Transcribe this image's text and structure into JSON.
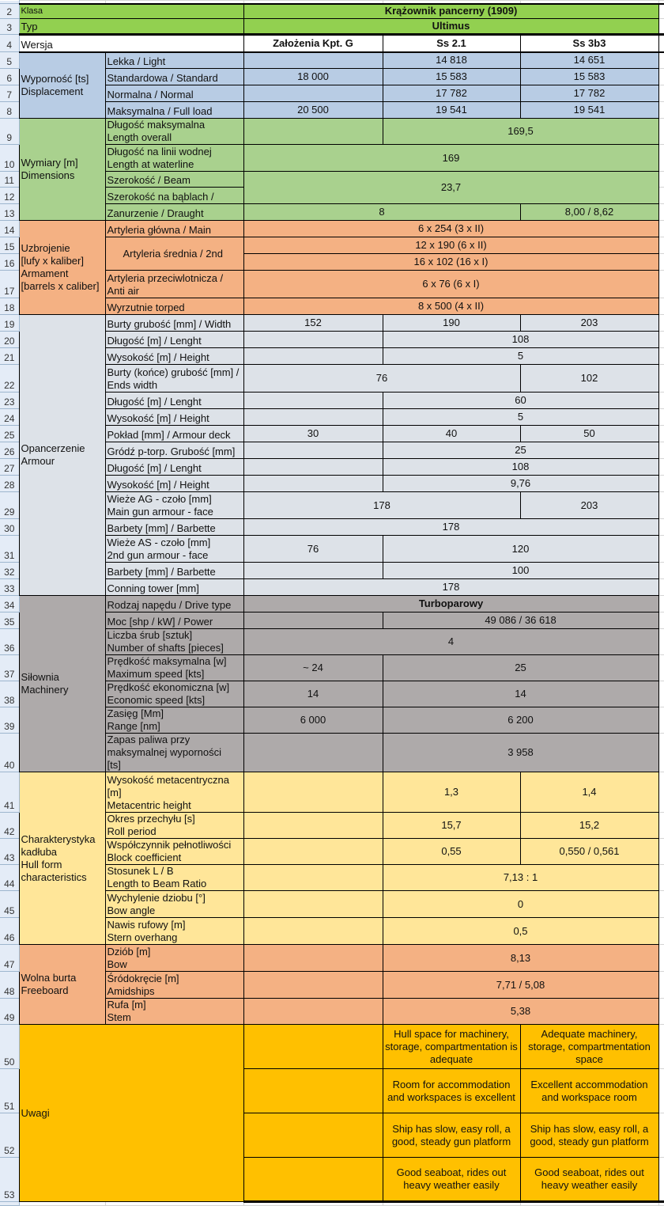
{
  "colors": {
    "title": "#92d050",
    "version": "#ffffff",
    "displacement": "#b8cce4",
    "dimensions": "#a9d18e",
    "armament": "#f4b183",
    "armour": "#dde2e8",
    "machinery": "#aeaaaa",
    "hull": "#ffe699",
    "freeboard": "#f4b183",
    "notes": "#ffc000"
  },
  "header": {
    "klasa_label": "Klasa",
    "klasa_value": "Krążownik pancerny (1909)",
    "typ_label": "Typ",
    "typ_value": "Ultimus",
    "wersja_label": "Wersja",
    "versions": [
      "Założenia Kpt. G",
      "Ss 2.1",
      "Ss 3b3"
    ]
  },
  "sections": [
    {
      "key": "displacement",
      "label": "Wyporność [ts]\nDisplacement",
      "rows": [
        {
          "label": "Lekka / Light",
          "cells": [
            {
              "v": ""
            },
            {
              "v": "14 818"
            },
            {
              "v": "14 651"
            }
          ]
        },
        {
          "label": "Standardowa / Standard",
          "cells": [
            {
              "v": "18 000"
            },
            {
              "v": "15 583"
            },
            {
              "v": "15 583"
            }
          ]
        },
        {
          "label": "Normalna / Normal",
          "cells": [
            {
              "v": ""
            },
            {
              "v": "17 782"
            },
            {
              "v": "17 782"
            }
          ]
        },
        {
          "label": "Maksymalna / Full load",
          "cells": [
            {
              "v": "20 500"
            },
            {
              "v": "19 541"
            },
            {
              "v": "19 541"
            }
          ]
        }
      ]
    },
    {
      "key": "dimensions",
      "label": "Wymiary [m]\nDimensions",
      "rows": [
        {
          "label": "Długość maksymalna\nLength overall",
          "cells": [
            {
              "v": ""
            },
            {
              "v": "169,5",
              "span": 2
            }
          ]
        },
        {
          "label": "Długość na linii wodnej\nLength at waterline",
          "cells": [
            {
              "v": "169",
              "span": 3
            }
          ]
        },
        {
          "label": "Szerokość / Beam",
          "cells": [
            {
              "v": "23,7",
              "span": 3,
              "rows": 2
            }
          ]
        },
        {
          "label": "Szerokość na bąblach /",
          "cells": []
        },
        {
          "label": "Zanurzenie / Draught",
          "cells": [
            {
              "v": "8",
              "span": 2
            },
            {
              "v": "8,00 / 8,62"
            }
          ]
        }
      ]
    },
    {
      "key": "armament",
      "label": "Uzbrojenie\n[lufy x kaliber]\nArmament\n[barrels x caliber]",
      "rows": [
        {
          "label": "Artyleria główna / Main",
          "cells": [
            {
              "v": "6 x 254 (3 x II)",
              "span": 3
            }
          ]
        },
        {
          "label": "Artyleria średnia / 2nd",
          "label_rows": 2,
          "cells": [
            {
              "v": "12 x 190 (6 x II)",
              "span": 3
            }
          ]
        },
        {
          "label": null,
          "cells": [
            {
              "v": "16 x 102 (16 x I)",
              "span": 3
            }
          ]
        },
        {
          "label": "Artyleria przeciwlotnicza /\nAnti air",
          "cells": [
            {
              "v": "6 x 76 (6 x I)",
              "span": 3
            }
          ]
        },
        {
          "label": "Wyrzutnie torped",
          "cells": [
            {
              "v": "8 x 500 (4 x II)",
              "span": 3
            }
          ]
        }
      ]
    },
    {
      "key": "armour",
      "label": "Opancerzenie\nArmour",
      "rows": [
        {
          "label": "Burty grubość [mm] / Width",
          "cells": [
            {
              "v": "152"
            },
            {
              "v": "190"
            },
            {
              "v": "203"
            }
          ]
        },
        {
          "label": "Długość [m] / Lenght",
          "cells": [
            {
              "v": ""
            },
            {
              "v": "108",
              "span": 2
            }
          ]
        },
        {
          "label": "Wysokość [m] / Height",
          "cells": [
            {
              "v": ""
            },
            {
              "v": "5",
              "span": 2
            }
          ]
        },
        {
          "label": "Burty (końce) grubość [mm] /\nEnds width",
          "cells": [
            {
              "v": "76",
              "span": 2
            },
            {
              "v": "102"
            }
          ]
        },
        {
          "label": "Długość [m] / Lenght",
          "cells": [
            {
              "v": ""
            },
            {
              "v": "60",
              "span": 2
            }
          ]
        },
        {
          "label": "Wysokość [m] / Height",
          "cells": [
            {
              "v": ""
            },
            {
              "v": "5",
              "span": 2
            }
          ]
        },
        {
          "label": "Pokład [mm] / Armour deck",
          "cells": [
            {
              "v": "30"
            },
            {
              "v": "40"
            },
            {
              "v": "50"
            }
          ]
        },
        {
          "label": "Gródź p-torp. Grubość [mm]",
          "cells": [
            {
              "v": ""
            },
            {
              "v": "25",
              "span": 2
            }
          ]
        },
        {
          "label": "Długość [m] / Lenght",
          "cells": [
            {
              "v": ""
            },
            {
              "v": "108",
              "span": 2
            }
          ]
        },
        {
          "label": "Wysokość [m] / Height",
          "cells": [
            {
              "v": ""
            },
            {
              "v": "9,76",
              "span": 2
            }
          ]
        },
        {
          "label": "Wieże AG - czoło [mm]\nMain gun armour - face",
          "cells": [
            {
              "v": "178",
              "span": 2
            },
            {
              "v": "203"
            }
          ]
        },
        {
          "label": "Barbety [mm] / Barbette",
          "cells": [
            {
              "v": "178",
              "span": 3
            }
          ]
        },
        {
          "label": "Wieże AS - czoło [mm]\n2nd gun armour - face",
          "cells": [
            {
              "v": "76"
            },
            {
              "v": "120",
              "span": 2
            }
          ]
        },
        {
          "label": "Barbety [mm] / Barbette",
          "cells": [
            {
              "v": ""
            },
            {
              "v": "100",
              "span": 2
            }
          ]
        },
        {
          "label": "Conning tower [mm]",
          "cells": [
            {
              "v": "178",
              "span": 3
            }
          ]
        }
      ]
    },
    {
      "key": "machinery",
      "label": "Siłownia\nMachinery",
      "rows": [
        {
          "label": "Rodzaj napędu / Drive type",
          "cells": [
            {
              "v": "Turboparowy",
              "span": 3,
              "bold": true
            }
          ]
        },
        {
          "label": "Moc [shp / kW] / Power",
          "cells": [
            {
              "v": ""
            },
            {
              "v": "49 086 / 36 618",
              "span": 2
            }
          ]
        },
        {
          "label": "Liczba śrub [sztuk]\nNumber of shafts [pieces]",
          "cells": [
            {
              "v": "4",
              "span": 3
            }
          ]
        },
        {
          "label": "Prędkość maksymalna [w]\nMaximum speed [kts]",
          "cells": [
            {
              "v": "~ 24"
            },
            {
              "v": "25",
              "span": 2
            }
          ]
        },
        {
          "label": "Prędkość ekonomiczna [w]\nEconomic speed [kts]",
          "cells": [
            {
              "v": "14"
            },
            {
              "v": "14",
              "span": 2
            }
          ]
        },
        {
          "label": "Zasięg [Mm]\nRange [nm]",
          "cells": [
            {
              "v": "6 000"
            },
            {
              "v": "6 200",
              "span": 2
            }
          ]
        },
        {
          "label": "Zapas paliwa przy\nmaksymalnej wyporności\n[ts]",
          "cells": [
            {
              "v": ""
            },
            {
              "v": "3 958",
              "span": 2
            }
          ]
        }
      ]
    },
    {
      "key": "hull",
      "label": "Charakterystyka\nkadłuba\nHull form\ncharacteristics",
      "rows": [
        {
          "label": "Wysokość metacentryczna\n[m]\nMetacentric height",
          "cells": [
            {
              "v": ""
            },
            {
              "v": "1,3"
            },
            {
              "v": "1,4"
            }
          ]
        },
        {
          "label": "Okres przechyłu [s]\nRoll period",
          "cells": [
            {
              "v": ""
            },
            {
              "v": "15,7"
            },
            {
              "v": "15,2"
            }
          ]
        },
        {
          "label": "Współczynnik pełnotliwości\nBlock coefficient",
          "cells": [
            {
              "v": ""
            },
            {
              "v": "0,55"
            },
            {
              "v": "0,550 / 0,561"
            }
          ]
        },
        {
          "label": "Stosunek L / B\nLength to Beam Ratio",
          "cells": [
            {
              "v": ""
            },
            {
              "v": "7,13 : 1",
              "span": 2
            }
          ]
        },
        {
          "label": "Wychylenie dziobu [°]\nBow angle",
          "cells": [
            {
              "v": ""
            },
            {
              "v": "0",
              "span": 2
            }
          ]
        },
        {
          "label": "Nawis rufowy [m]\nStern overhang",
          "cells": [
            {
              "v": ""
            },
            {
              "v": "0,5",
              "span": 2
            }
          ]
        }
      ]
    },
    {
      "key": "freeboard",
      "label": "Wolna burta\nFreeboard",
      "rows": [
        {
          "label": "Dziób [m]\nBow",
          "cells": [
            {
              "v": ""
            },
            {
              "v": "8,13",
              "span": 2
            }
          ]
        },
        {
          "label": "Śródokręcie [m]\nAmidships",
          "cells": [
            {
              "v": ""
            },
            {
              "v": "7,71 / 5,08",
              "span": 2
            }
          ]
        },
        {
          "label": "Rufa [m]\nStem",
          "cells": [
            {
              "v": ""
            },
            {
              "v": "5,38",
              "span": 2
            }
          ]
        }
      ]
    },
    {
      "key": "notes",
      "label": "Uwagi",
      "wide": true,
      "rows": [
        {
          "cells": [
            {
              "v": ""
            },
            {
              "v": "Hull space for machinery,\nstorage, compartmentation is\nadequate"
            },
            {
              "v": "Adequate machinery,\nstorage, compartmentation\nspace"
            }
          ]
        },
        {
          "cells": [
            {
              "v": ""
            },
            {
              "v": "Room for accommodation\nand workspaces is excellent"
            },
            {
              "v": "Excellent accommodation\nand workspace room"
            }
          ]
        },
        {
          "cells": [
            {
              "v": ""
            },
            {
              "v": "Ship has slow, easy roll, a\ngood, steady gun platform"
            },
            {
              "v": "Ship has slow, easy roll, a\ngood, steady gun platform"
            }
          ]
        },
        {
          "cells": [
            {
              "v": ""
            },
            {
              "v": "Good seaboat, rides out\nheavy weather easily"
            },
            {
              "v": "Good seaboat, rides out\nheavy weather easily"
            }
          ]
        }
      ]
    }
  ]
}
